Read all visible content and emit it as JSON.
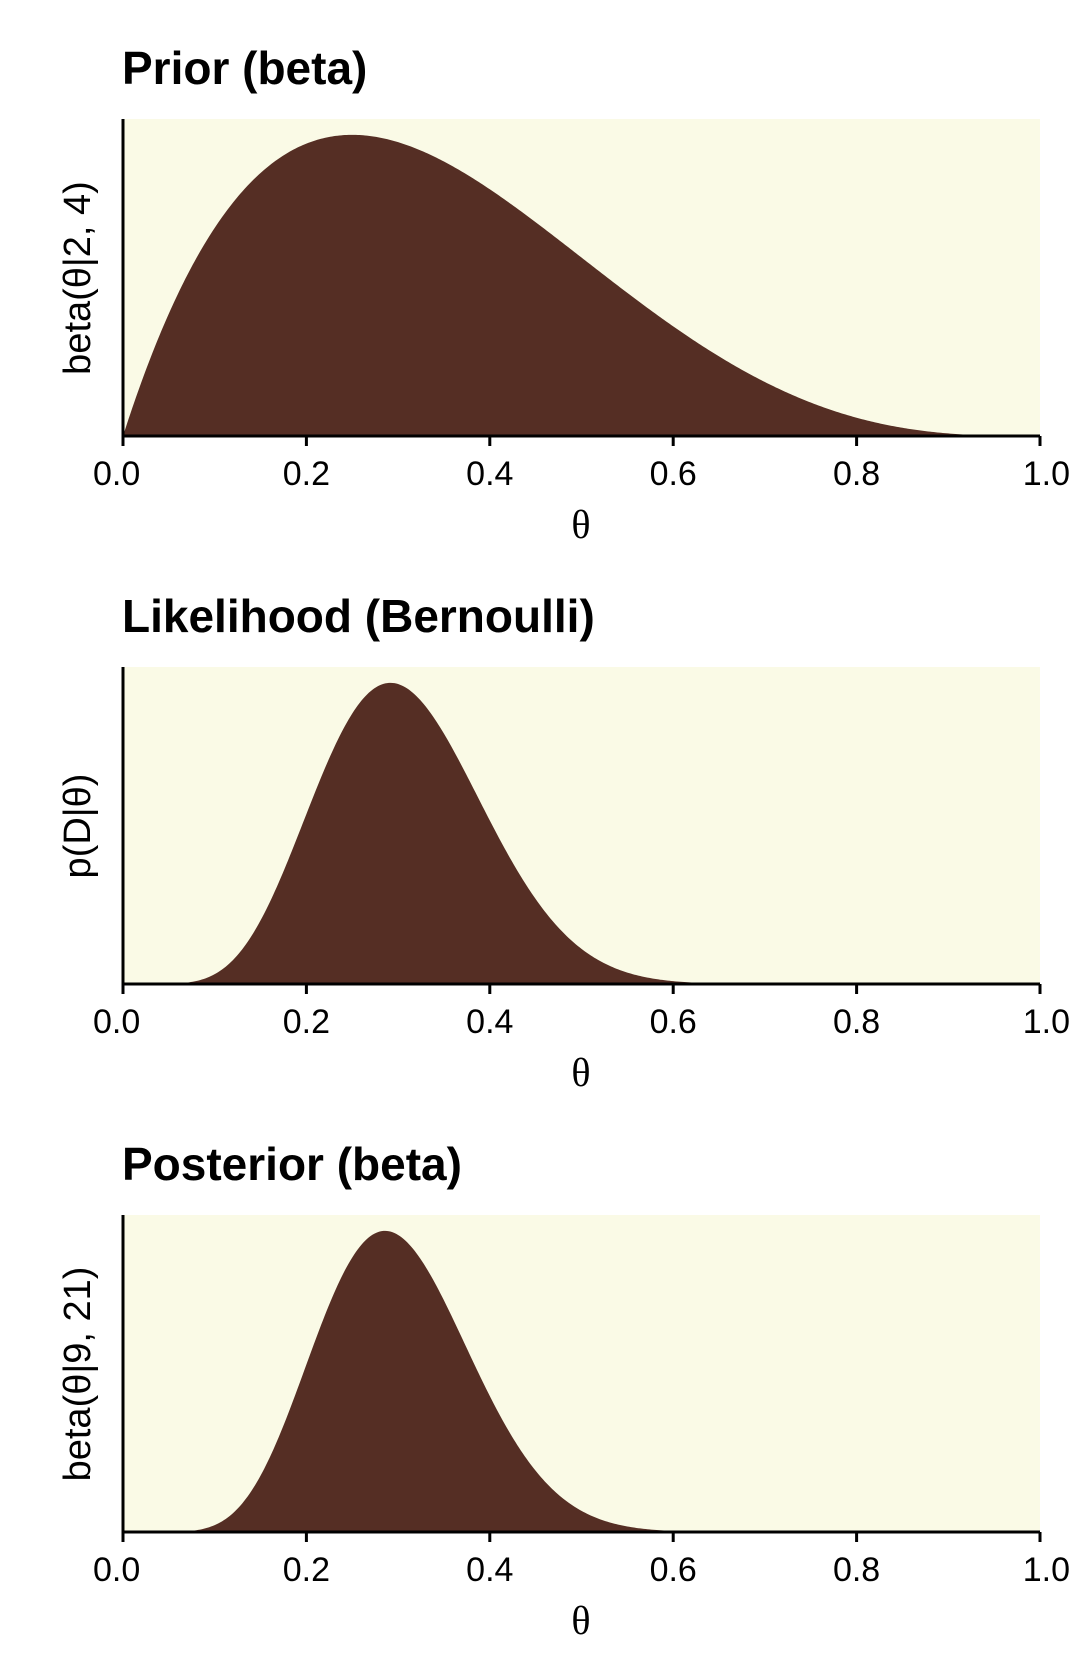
{
  "style": {
    "panel_background": "#fafae6",
    "fill_color": "#552e24",
    "axis_color": "#000000"
  },
  "chart_data": [
    {
      "type": "area",
      "title": "Prior (beta)",
      "xlabel": "θ",
      "ylabel": "beta(θ|2, 4)",
      "xlim": [
        0,
        1
      ],
      "x_ticks": [
        "0.0",
        "0.2",
        "0.4",
        "0.6",
        "0.8",
        "1.0"
      ],
      "y_ticks": [],
      "distribution": {
        "family": "beta",
        "a": 2,
        "b": 4
      }
    },
    {
      "type": "area",
      "title": "Likelihood (Bernoulli)",
      "xlabel": "θ",
      "ylabel": "p(D|θ)",
      "xlim": [
        0,
        1
      ],
      "x_ticks": [
        "0.0",
        "0.2",
        "0.4",
        "0.6",
        "0.8",
        "1.0"
      ],
      "y_ticks": [],
      "distribution": {
        "family": "bernoulli_likelihood",
        "z": 7,
        "n": 24
      }
    },
    {
      "type": "area",
      "title": "Posterior (beta)",
      "xlabel": "θ",
      "ylabel": "beta(θ|9, 21)",
      "xlim": [
        0,
        1
      ],
      "x_ticks": [
        "0.0",
        "0.2",
        "0.4",
        "0.6",
        "0.8",
        "1.0"
      ],
      "y_ticks": [],
      "distribution": {
        "family": "beta",
        "a": 9,
        "b": 21
      }
    }
  ]
}
